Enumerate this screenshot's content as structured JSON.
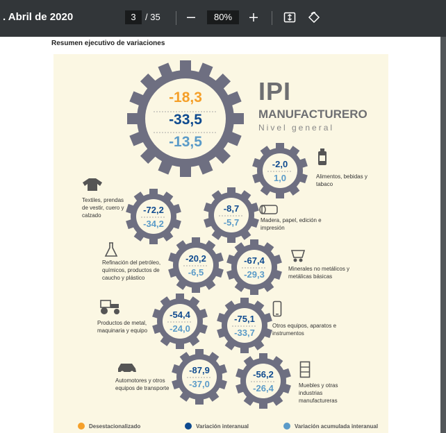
{
  "toolbar": {
    "title": ". Abril de 2020",
    "page_current": "3",
    "page_total": "/ 35",
    "zoom": "80%",
    "zoom_out_icon": "minus-icon",
    "zoom_in_icon": "plus-icon",
    "fit_icon": "fit-page-icon",
    "rotate_icon": "rotate-icon"
  },
  "page": {
    "heading": "Resumen ejecutivo de variaciones",
    "ipi": "IPI",
    "manufacturero": "MANUFACTURERO",
    "nivel": "Nivel general",
    "main": {
      "v1": "-18,3",
      "v2": "-33,5",
      "v3": "-13,5"
    },
    "sectors": [
      {
        "name": "alimentos",
        "label": "Alimentos, bebidas y tabaco",
        "v1": "-2,0",
        "v2": "1,0"
      },
      {
        "name": "textiles",
        "label": "Textiles, prendas de vestir, cuero y calzado",
        "v1": "-72,2",
        "v2": "-34,2"
      },
      {
        "name": "madera",
        "label": "Madera, papel, edición e impresión",
        "v1": "-8,7",
        "v2": "-5,7"
      },
      {
        "name": "refinacion",
        "label": "Refinación del petróleo, químicos, productos de caucho y plástico",
        "v1": "-20,2",
        "v2": "-6,5"
      },
      {
        "name": "minerales",
        "label": "Minerales no metálicos y metálicas básicas",
        "v1": "-67,4",
        "v2": "-29,3"
      },
      {
        "name": "metal",
        "label": "Productos de metal, maquinaria y equipo",
        "v1": "-54,4",
        "v2": "-24,0"
      },
      {
        "name": "otros-equipos",
        "label": "Otros equipos, aparatos e instrumentos",
        "v1": "-75,1",
        "v2": "-33,7"
      },
      {
        "name": "automotores",
        "label": "Automotores y otros equipos de transporte",
        "v1": "-87,9",
        "v2": "-37,0"
      },
      {
        "name": "muebles",
        "label": "Muebles y otras industrias manufactureras",
        "v1": "-56,2",
        "v2": "-26,4"
      }
    ],
    "legend": [
      {
        "label": "Desestacionalizado",
        "color": "#f5a02a"
      },
      {
        "label": "Variación interanual",
        "color": "#0e4a8f"
      },
      {
        "label": "Variación acumulada interanual",
        "color": "#5b9bc8"
      }
    ]
  },
  "colors": {
    "orange": "#f5a02a",
    "blue": "#0e4a8f",
    "lightblue": "#5b9bc8",
    "gear": "#6e6f81"
  }
}
